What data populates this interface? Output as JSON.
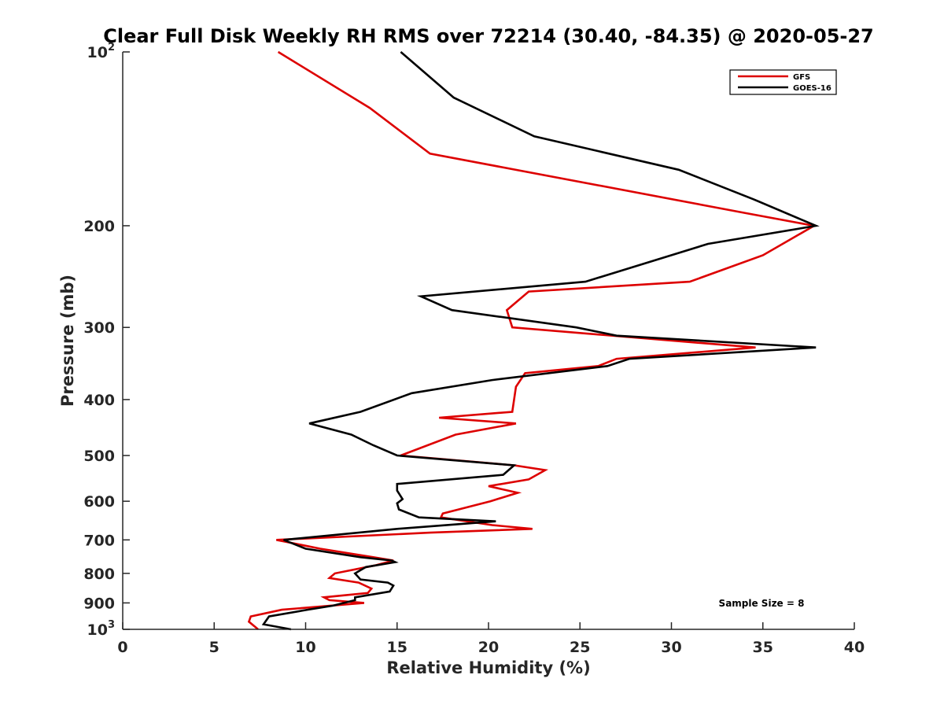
{
  "chart_data": {
    "type": "line",
    "title": "Clear Full Disk Weekly RH RMS over 72214 (30.40, -84.35) @ 2020-05-27",
    "xlabel": "Relative Humidity (%)",
    "ylabel": "Pressure (mb)",
    "xlim": [
      0,
      40
    ],
    "ylim": [
      100,
      1000
    ],
    "yscale": "log",
    "yreversed": true,
    "x_ticks": [
      0,
      5,
      10,
      15,
      20,
      25,
      30,
      35,
      40
    ],
    "x_tick_labels": [
      "0",
      "5",
      "10",
      "15",
      "20",
      "25",
      "30",
      "35",
      "40"
    ],
    "y_ticks": [
      100,
      200,
      300,
      400,
      500,
      600,
      700,
      800,
      900,
      1000
    ],
    "y_tick_labels": [
      {
        "base": "10",
        "exp": "2"
      },
      {
        "base": "200",
        "exp": ""
      },
      {
        "base": "300",
        "exp": ""
      },
      {
        "base": "400",
        "exp": ""
      },
      {
        "base": "500",
        "exp": ""
      },
      {
        "base": "600",
        "exp": ""
      },
      {
        "base": "700",
        "exp": ""
      },
      {
        "base": "800",
        "exp": ""
      },
      {
        "base": "900",
        "exp": ""
      },
      {
        "base": "10",
        "exp": "3"
      }
    ],
    "legend_position": "top-right",
    "annotation": "Sample Size = 8",
    "series": [
      {
        "name": "GFS",
        "color": "#dd0000",
        "points": [
          [
            8.5,
            100
          ],
          [
            13.5,
            125
          ],
          [
            16.8,
            150
          ],
          [
            34.0,
            190
          ],
          [
            37.8,
            200
          ],
          [
            35.0,
            225
          ],
          [
            31.0,
            250
          ],
          [
            22.2,
            260
          ],
          [
            21.0,
            280
          ],
          [
            21.3,
            300
          ],
          [
            34.6,
            325
          ],
          [
            27.0,
            340
          ],
          [
            26.0,
            350
          ],
          [
            22.0,
            360
          ],
          [
            21.5,
            380
          ],
          [
            21.4,
            400
          ],
          [
            21.3,
            420
          ],
          [
            17.3,
            430
          ],
          [
            21.5,
            440
          ],
          [
            18.2,
            460
          ],
          [
            15.2,
            500
          ],
          [
            21.4,
            520
          ],
          [
            23.1,
            530
          ],
          [
            22.2,
            550
          ],
          [
            20.0,
            565
          ],
          [
            21.6,
            580
          ],
          [
            20.1,
            600
          ],
          [
            17.5,
            630
          ],
          [
            17.4,
            640
          ],
          [
            20.2,
            660
          ],
          [
            22.4,
            670
          ],
          [
            16.8,
            680
          ],
          [
            8.4,
            700
          ],
          [
            10.8,
            725
          ],
          [
            13.7,
            750
          ],
          [
            14.8,
            760
          ],
          [
            13.8,
            775
          ],
          [
            11.6,
            800
          ],
          [
            11.3,
            815
          ],
          [
            12.9,
            830
          ],
          [
            13.6,
            850
          ],
          [
            13.4,
            865
          ],
          [
            11.0,
            880
          ],
          [
            11.3,
            890
          ],
          [
            13.2,
            900
          ],
          [
            8.7,
            925
          ],
          [
            7.0,
            950
          ],
          [
            6.9,
            970
          ],
          [
            7.4,
            1000
          ]
        ]
      },
      {
        "name": "GOES-16",
        "color": "#000000",
        "points": [
          [
            15.2,
            100
          ],
          [
            18.1,
            120
          ],
          [
            22.5,
            140
          ],
          [
            30.4,
            160
          ],
          [
            34.5,
            180
          ],
          [
            37.9,
            200
          ],
          [
            32.0,
            215
          ],
          [
            25.3,
            250
          ],
          [
            16.3,
            265
          ],
          [
            18.0,
            280
          ],
          [
            24.8,
            300
          ],
          [
            27.0,
            310
          ],
          [
            37.9,
            325
          ],
          [
            27.7,
            340
          ],
          [
            26.5,
            350
          ],
          [
            20.2,
            370
          ],
          [
            15.8,
            390
          ],
          [
            13.0,
            420
          ],
          [
            10.2,
            440
          ],
          [
            12.5,
            460
          ],
          [
            13.7,
            480
          ],
          [
            15.0,
            500
          ],
          [
            21.4,
            520
          ],
          [
            20.8,
            540
          ],
          [
            15.0,
            560
          ],
          [
            15.0,
            575
          ],
          [
            15.3,
            595
          ],
          [
            15.0,
            605
          ],
          [
            15.1,
            620
          ],
          [
            16.2,
            640
          ],
          [
            20.4,
            650
          ],
          [
            15.0,
            670
          ],
          [
            8.8,
            700
          ],
          [
            10.0,
            725
          ],
          [
            13.0,
            750
          ],
          [
            14.7,
            760
          ],
          [
            14.9,
            765
          ],
          [
            13.3,
            780
          ],
          [
            12.7,
            800
          ],
          [
            13.0,
            820
          ],
          [
            14.5,
            830
          ],
          [
            14.8,
            840
          ],
          [
            14.6,
            860
          ],
          [
            12.7,
            880
          ],
          [
            12.7,
            890
          ],
          [
            11.5,
            910
          ],
          [
            10.1,
            925
          ],
          [
            8.0,
            950
          ],
          [
            7.7,
            980
          ],
          [
            9.2,
            1000
          ]
        ]
      }
    ]
  }
}
